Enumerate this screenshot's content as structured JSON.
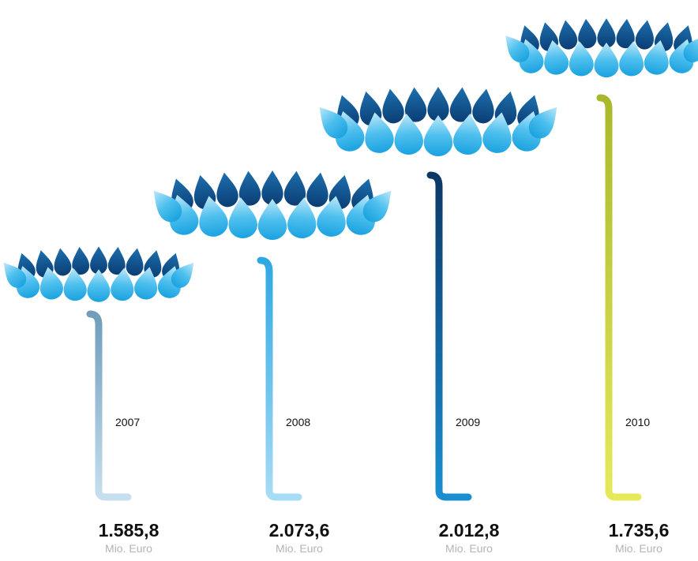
{
  "items": [
    {
      "year": "2007",
      "value": "1.585,8",
      "unit": "Mio. Euro"
    },
    {
      "year": "2008",
      "value": "2.073,6",
      "unit": "Mio. Euro"
    },
    {
      "year": "2009",
      "value": "2.012,8",
      "unit": "Mio. Euro"
    },
    {
      "year": "2010",
      "value": "1.735,6",
      "unit": "Mio. Euro"
    }
  ]
}
